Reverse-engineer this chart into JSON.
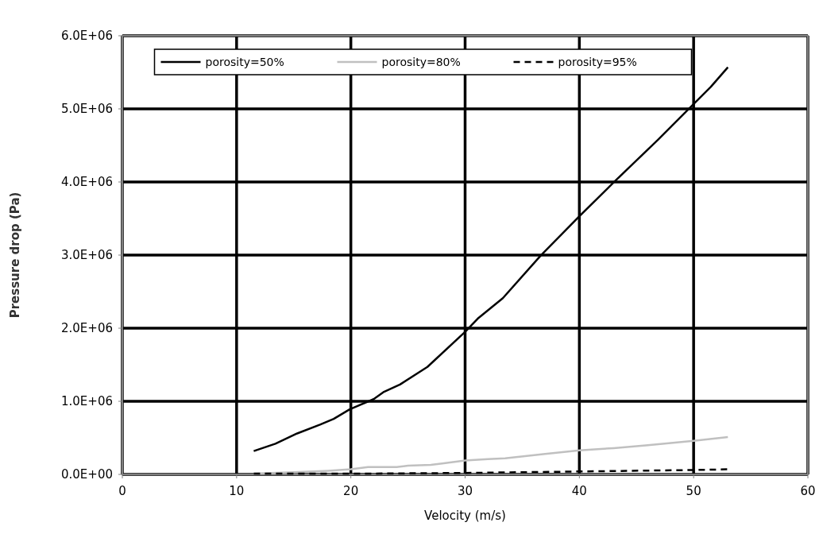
{
  "chart_data": {
    "type": "line",
    "xlabel": "Velocity (m/s)",
    "ylabel": "Pressure drop (Pa)",
    "xlim": [
      0,
      60
    ],
    "xticks": [
      0,
      10,
      20,
      30,
      40,
      50,
      60
    ],
    "ylim": [
      0,
      6000000
    ],
    "yticks": [
      {
        "value": 0,
        "label": "0.0E+00"
      },
      {
        "value": 1000000,
        "label": "1.0E+06"
      },
      {
        "value": 2000000,
        "label": "2.0E+06"
      },
      {
        "value": 3000000,
        "label": "3.0E+06"
      },
      {
        "value": 4000000,
        "label": "4.0E+06"
      },
      {
        "value": 5000000,
        "label": "5.0E+06"
      },
      {
        "value": 6000000,
        "label": "6.0E+06"
      }
    ],
    "grid": true,
    "legend": "top",
    "marker": "none",
    "series": [
      {
        "name": "porosity=50%",
        "color": "#000000",
        "line_style": "solid",
        "x": [
          11.5,
          13.4,
          15.3,
          17.3,
          18.5,
          19.9,
          22.0,
          22.9,
          24.3,
          26.7,
          30.0,
          31.1,
          33.3,
          36.6,
          40.0,
          43.1,
          46.9,
          49.9,
          51.5,
          53.0
        ],
        "values": [
          320000,
          420000,
          560000,
          680000,
          760000,
          890000,
          1030000,
          1130000,
          1230000,
          1470000,
          1950000,
          2130000,
          2410000,
          2990000,
          3530000,
          4010000,
          4580000,
          5050000,
          5300000,
          5570000
        ]
      },
      {
        "name": "porosity=80%",
        "color": "#c0c0c0",
        "line_style": "solid",
        "x": [
          11.5,
          15,
          18,
          20,
          21.5,
          24,
          25,
          27,
          28,
          30,
          32,
          33.5,
          37,
          40,
          43,
          46,
          50,
          53
        ],
        "values": [
          10000,
          30000,
          50000,
          70000,
          100000,
          100000,
          120000,
          130000,
          150000,
          190000,
          210000,
          220000,
          280000,
          330000,
          360000,
          400000,
          460000,
          510000
        ]
      },
      {
        "name": "porosity=95%",
        "color": "#000000",
        "line_style": "dashed",
        "x": [
          11.5,
          20,
          30,
          40,
          50,
          53
        ],
        "values": [
          10000,
          10000,
          20000,
          40000,
          60000,
          70000
        ]
      }
    ]
  }
}
